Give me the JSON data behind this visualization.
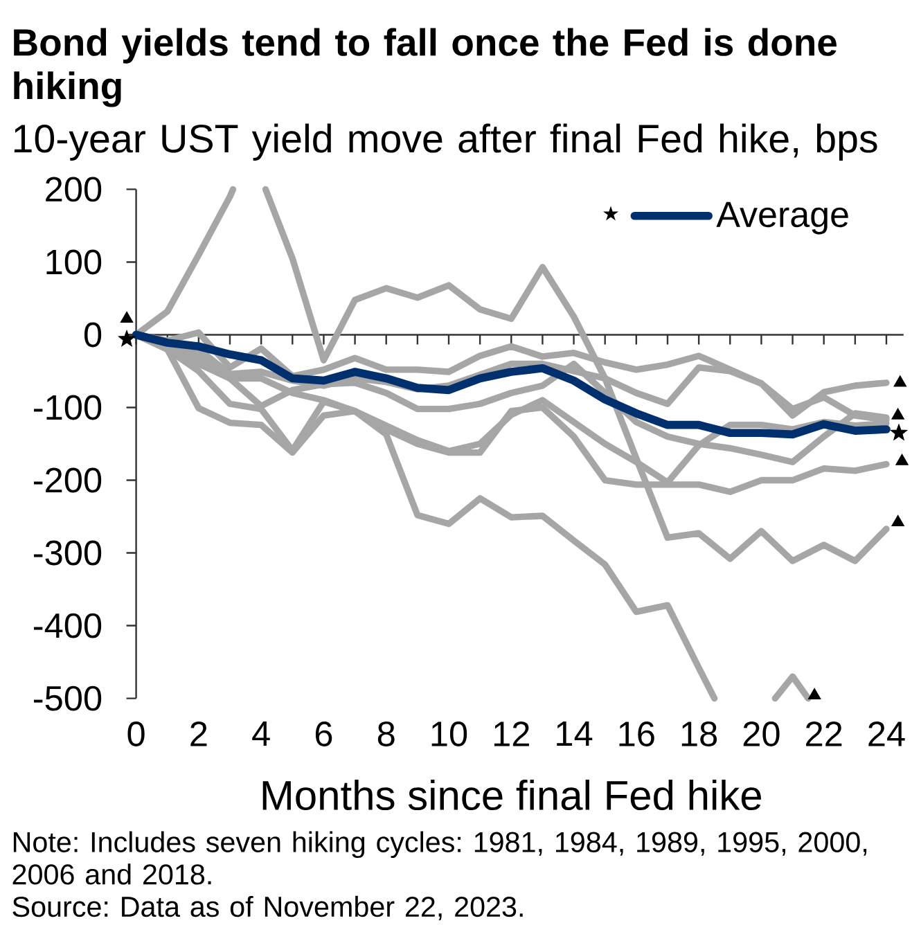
{
  "chart_data": {
    "type": "line",
    "title": "Bond yields tend to fall once the Fed is done hiking",
    "subtitle": "10-year UST yield move after final Fed hike, bps",
    "xlabel": "Months since final Fed hike",
    "legend_title": "★",
    "annotations": [
      "Note: Includes seven hiking cycles: 1981, 1984, 1989, 1995, 2000, 2006 and 2018.",
      "Source: Data as of November 22, 2023."
    ],
    "x": [
      0,
      1,
      2,
      3,
      4,
      5,
      6,
      7,
      8,
      9,
      10,
      11,
      12,
      13,
      14,
      15,
      16,
      17,
      18,
      19,
      20,
      21,
      22,
      23,
      24
    ],
    "xlim": [
      -0.35,
      24.55
    ],
    "xticks": [
      0,
      {
        "value": 1,
        "label": null
      },
      2,
      {
        "value": 3,
        "label": null
      },
      4,
      {
        "value": 5,
        "label": null
      },
      6,
      {
        "value": 7,
        "label": null
      },
      8,
      {
        "value": 9,
        "label": null
      },
      10,
      {
        "value": 11,
        "label": null
      },
      12,
      {
        "value": 13,
        "label": null
      },
      14,
      {
        "value": 15,
        "label": null
      },
      16,
      {
        "value": 17,
        "label": null
      },
      18,
      {
        "value": 19,
        "label": null
      },
      20,
      {
        "value": 21,
        "label": null
      },
      22,
      {
        "value": 23,
        "label": null
      },
      24
    ],
    "ylim": [
      -500,
      200
    ],
    "yticks": [
      -500,
      -400,
      -300,
      -200,
      -100,
      0,
      100,
      200
    ],
    "legend": "top right",
    "marker": "none",
    "line_style": "solid",
    "series": [
      {
        "color": "#a6a6a6",
        "x": [
          0,
          1,
          2,
          3,
          3.1,
          3.6,
          4.14,
          5,
          6,
          7,
          8,
          9,
          10,
          11,
          12,
          13,
          14,
          15,
          16,
          17,
          18,
          19,
          20,
          21,
          22,
          23,
          24
        ],
        "values": [
          0,
          32,
          110,
          190,
          200,
          null,
          200,
          105,
          -35,
          48,
          64,
          51,
          68,
          35,
          22,
          93,
          25,
          -60,
          -170,
          -279,
          -273,
          -308,
          -270,
          -311,
          -289,
          -311,
          -267
        ]
      },
      {
        "color": "#a6a6a6",
        "x": [
          0,
          1,
          2,
          3,
          4,
          5,
          6,
          7,
          8,
          9,
          10,
          11,
          12,
          13,
          14,
          15,
          16,
          17,
          18,
          18.5,
          19.5,
          20.44,
          21,
          21.5
        ],
        "values": [
          0,
          -20,
          -101,
          -121,
          -124,
          -162,
          -111,
          -105,
          -137,
          -248,
          -260,
          -225,
          -251,
          -249,
          -283,
          -316,
          -381,
          -372,
          -458,
          -500,
          null,
          -500,
          -470,
          -500
        ]
      },
      {
        "color": "#a6a6a6",
        "values": [
          0,
          -8,
          3,
          -45,
          -19,
          -57,
          -48,
          -32,
          -48,
          -48,
          -51,
          -29,
          -16,
          -30,
          -25,
          -38,
          -48,
          -41,
          -29,
          -48,
          -67,
          -111,
          -79,
          -70,
          -66
        ]
      },
      {
        "color": "#a6a6a6",
        "values": [
          0,
          -15,
          -20,
          -54,
          -51,
          -63,
          -70,
          -60,
          -65,
          -75,
          -70,
          -55,
          -40,
          -40,
          -50,
          -60,
          -80,
          -95,
          -45,
          -50,
          -67,
          -102,
          -86,
          -111,
          -117
        ]
      },
      {
        "color": "#a6a6a6",
        "values": [
          0,
          -12,
          -40,
          -60,
          -98,
          -76,
          -68,
          -66,
          -80,
          -102,
          -102,
          -95,
          -80,
          -70,
          -40,
          -80,
          -120,
          -140,
          -150,
          -156,
          -165,
          -175,
          -140,
          -108,
          -114
        ]
      },
      {
        "color": "#a6a6a6",
        "values": [
          0,
          -20,
          -50,
          -95,
          -102,
          -159,
          -92,
          -105,
          -130,
          -150,
          -162,
          -162,
          -105,
          -100,
          -140,
          -200,
          -206,
          -206,
          -206,
          -216,
          -200,
          -200,
          -184,
          -187,
          -178
        ]
      },
      {
        "color": "#a6a6a6",
        "values": [
          0,
          -10,
          -30,
          -60,
          -60,
          -80,
          -90,
          -105,
          -125,
          -145,
          -160,
          -150,
          -110,
          -90,
          -120,
          -150,
          -175,
          -203,
          -152,
          -124,
          -124,
          -130,
          -120,
          -125,
          -122
        ]
      },
      {
        "type": "scatter",
        "marker": "star",
        "color": "#000000",
        "x": [
          -0.3,
          24.4
        ],
        "values": [
          -6,
          -135
        ]
      },
      {
        "name": "Average",
        "color": "#00306e",
        "values": [
          0,
          -11,
          -16,
          -27,
          -35,
          -60,
          -63,
          -51,
          -60,
          -73,
          -76,
          -60,
          -51,
          -46,
          -63,
          -89,
          -108,
          -124,
          -124,
          -135,
          -135,
          -137,
          -123,
          -132,
          -130
        ]
      },
      {
        "type": "scatter",
        "marker": "triangle",
        "color": "#000000",
        "x": [
          -0.3,
          24.44,
          24.37,
          24.5,
          24.37,
          21.7
        ],
        "values": [
          22,
          -66,
          -111,
          -174,
          -258,
          -496
        ]
      }
    ]
  }
}
